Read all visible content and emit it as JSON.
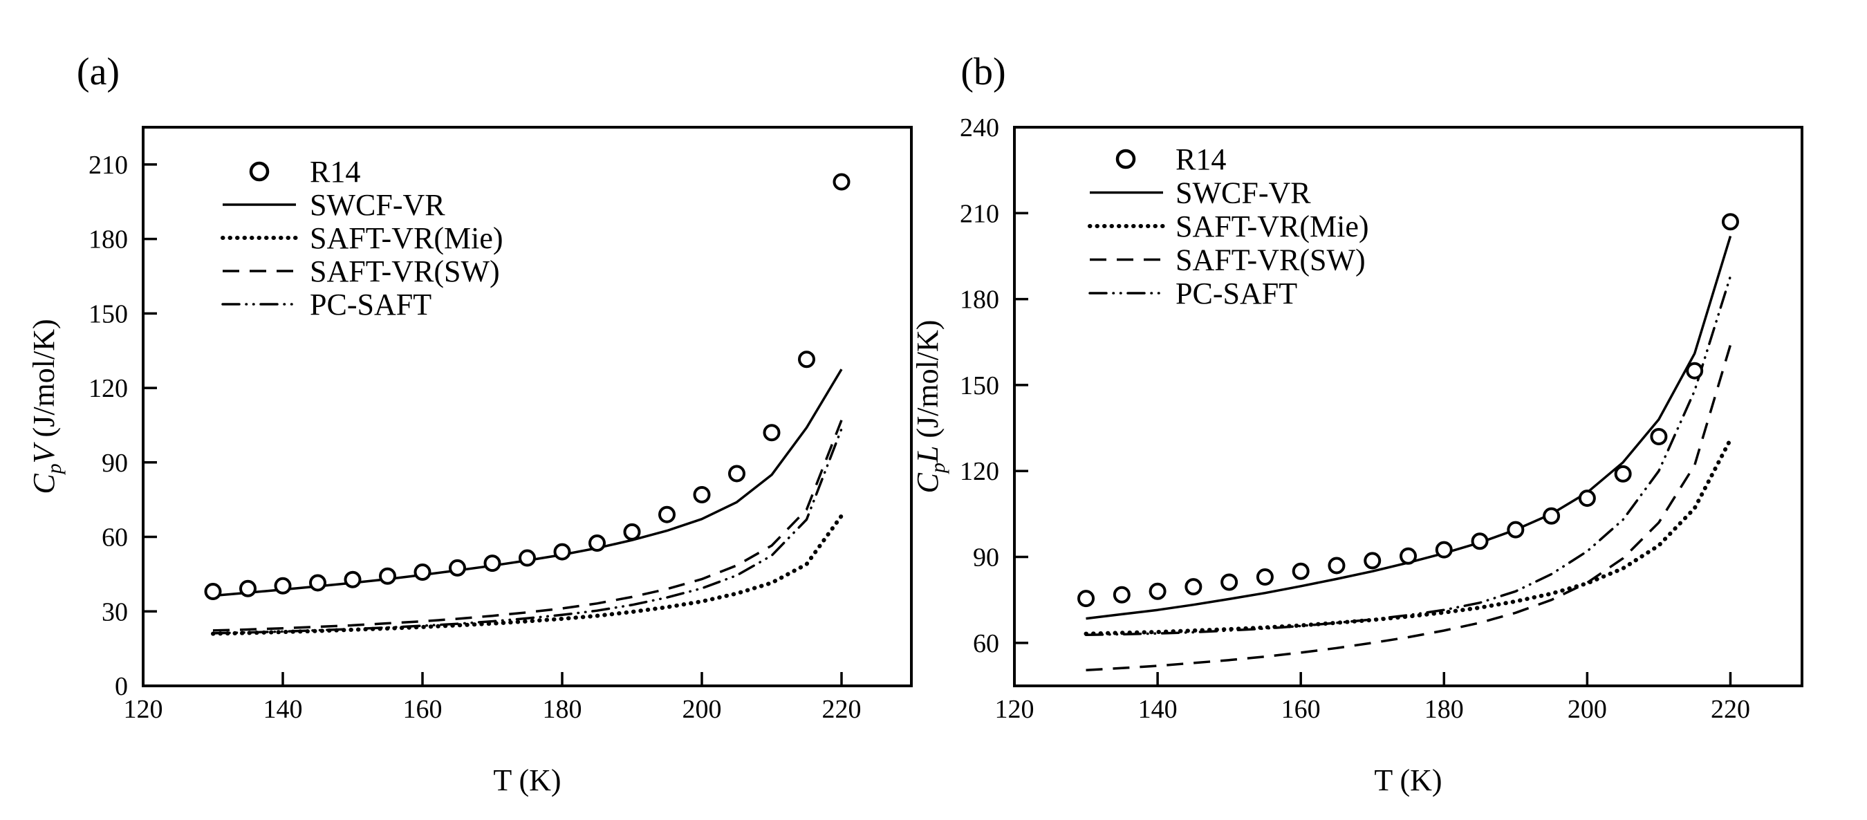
{
  "figure": {
    "background": "#ffffff",
    "ink": "#000000"
  },
  "chart_data": [
    {
      "id": "a",
      "type": "line",
      "panel_tag": "(a)",
      "xlabel": "T (K)",
      "ylabel": {
        "base": "C",
        "subscript": "p",
        "phase": "V",
        "unit": " (J/mol/K)"
      },
      "x_range": [
        120,
        230
      ],
      "y_range": [
        0,
        225
      ],
      "x_ticks": [
        120,
        140,
        160,
        180,
        200,
        220
      ],
      "y_ticks": [
        0,
        30,
        60,
        90,
        120,
        150,
        180,
        210
      ],
      "grid": false,
      "legend_position": "upper-left-inside",
      "legend": [
        {
          "label": "R14",
          "style": "circles"
        },
        {
          "label": "SWCF-VR",
          "style": "solid"
        },
        {
          "label": "SAFT-VR(Mie)",
          "style": "dotted"
        },
        {
          "label": "SAFT-VR(SW)",
          "style": "dashed"
        },
        {
          "label": "PC-SAFT",
          "style": "dashdotdot"
        }
      ],
      "series": [
        {
          "name": "SWCF-VR",
          "style": "solid",
          "points": [
            [
              130,
              36.3
            ],
            [
              135,
              37.5
            ],
            [
              140,
              38.8
            ],
            [
              145,
              40.1
            ],
            [
              150,
              41.5
            ],
            [
              155,
              43.0
            ],
            [
              160,
              44.7
            ],
            [
              165,
              46.5
            ],
            [
              170,
              48.4
            ],
            [
              175,
              50.5
            ],
            [
              180,
              52.8
            ],
            [
              185,
              55.5
            ],
            [
              190,
              58.7
            ],
            [
              195,
              62.5
            ],
            [
              200,
              67.2
            ],
            [
              205,
              74.0
            ],
            [
              210,
              85.0
            ],
            [
              215,
              104.0
            ],
            [
              220,
              127.5
            ]
          ]
        },
        {
          "name": "SAFT-VR(Mie)",
          "style": "dotted",
          "points": [
            [
              130,
              21.0
            ],
            [
              135,
              21.3
            ],
            [
              140,
              21.7
            ],
            [
              145,
              22.1
            ],
            [
              150,
              22.6
            ],
            [
              155,
              23.1
            ],
            [
              160,
              23.7
            ],
            [
              165,
              24.4
            ],
            [
              170,
              25.1
            ],
            [
              175,
              26.0
            ],
            [
              180,
              27.0
            ],
            [
              185,
              28.2
            ],
            [
              190,
              29.8
            ],
            [
              195,
              31.7
            ],
            [
              200,
              34.0
            ],
            [
              205,
              37.2
            ],
            [
              210,
              41.5
            ],
            [
              215,
              49.0
            ],
            [
              220,
              68.5
            ]
          ]
        },
        {
          "name": "SAFT-VR(SW)",
          "style": "dashed",
          "points": [
            [
              130,
              22.3
            ],
            [
              135,
              22.7
            ],
            [
              140,
              23.2
            ],
            [
              145,
              23.8
            ],
            [
              150,
              24.4
            ],
            [
              155,
              25.2
            ],
            [
              160,
              26.0
            ],
            [
              165,
              27.0
            ],
            [
              170,
              28.2
            ],
            [
              175,
              29.6
            ],
            [
              180,
              31.2
            ],
            [
              185,
              33.2
            ],
            [
              190,
              35.8
            ],
            [
              195,
              39.0
            ],
            [
              200,
              43.0
            ],
            [
              205,
              48.5
            ],
            [
              210,
              56.5
            ],
            [
              215,
              71.0
            ],
            [
              220,
              107.0
            ]
          ]
        },
        {
          "name": "PC-SAFT",
          "style": "dashdotdot",
          "points": [
            [
              130,
              21.2
            ],
            [
              135,
              21.5
            ],
            [
              140,
              21.9
            ],
            [
              145,
              22.4
            ],
            [
              150,
              22.9
            ],
            [
              155,
              23.5
            ],
            [
              160,
              24.2
            ],
            [
              165,
              25.0
            ],
            [
              170,
              26.0
            ],
            [
              175,
              27.2
            ],
            [
              180,
              28.6
            ],
            [
              185,
              30.3
            ],
            [
              190,
              32.6
            ],
            [
              195,
              35.6
            ],
            [
              200,
              39.3
            ],
            [
              205,
              44.5
            ],
            [
              210,
              52.5
            ],
            [
              215,
              67.0
            ],
            [
              220,
              103.5
            ]
          ]
        },
        {
          "name": "R14",
          "style": "circles",
          "points": [
            [
              130,
              38.0
            ],
            [
              135,
              39.2
            ],
            [
              140,
              40.3
            ],
            [
              145,
              41.5
            ],
            [
              150,
              42.8
            ],
            [
              155,
              44.2
            ],
            [
              160,
              45.8
            ],
            [
              165,
              47.5
            ],
            [
              170,
              49.4
            ],
            [
              175,
              51.5
            ],
            [
              180,
              54.0
            ],
            [
              185,
              57.5
            ],
            [
              190,
              62.0
            ],
            [
              195,
              69.0
            ],
            [
              200,
              77.0
            ],
            [
              205,
              85.5
            ],
            [
              210,
              102.0
            ],
            [
              215,
              131.5
            ],
            [
              220,
              203.0
            ]
          ]
        }
      ]
    },
    {
      "id": "b",
      "type": "line",
      "panel_tag": "(b)",
      "xlabel": "T (K)",
      "ylabel": {
        "base": "C",
        "subscript": "p",
        "phase": "L",
        "unit": " (J/mol/K)"
      },
      "x_range": [
        120,
        230
      ],
      "y_range": [
        45,
        240
      ],
      "x_ticks": [
        120,
        140,
        160,
        180,
        200,
        220
      ],
      "y_ticks": [
        60,
        90,
        120,
        150,
        180,
        210,
        240
      ],
      "grid": false,
      "legend_position": "upper-left-inside",
      "legend": [
        {
          "label": "R14",
          "style": "circles"
        },
        {
          "label": "SWCF-VR",
          "style": "solid"
        },
        {
          "label": "SAFT-VR(Mie)",
          "style": "dotted"
        },
        {
          "label": "SAFT-VR(SW)",
          "style": "dashed"
        },
        {
          "label": "PC-SAFT",
          "style": "dashdotdot"
        }
      ],
      "series": [
        {
          "name": "SWCF-VR",
          "style": "solid",
          "points": [
            [
              130,
              68.5
            ],
            [
              135,
              70.0
            ],
            [
              140,
              71.5
            ],
            [
              145,
              73.3
            ],
            [
              150,
              75.3
            ],
            [
              155,
              77.4
            ],
            [
              160,
              79.8
            ],
            [
              165,
              82.3
            ],
            [
              170,
              85.0
            ],
            [
              175,
              88.0
            ],
            [
              180,
              91.3
            ],
            [
              185,
              95.0
            ],
            [
              190,
              99.5
            ],
            [
              195,
              105.0
            ],
            [
              200,
              112.5
            ],
            [
              205,
              123.0
            ],
            [
              210,
              138.0
            ],
            [
              215,
              161.0
            ],
            [
              220,
              202.0
            ]
          ]
        },
        {
          "name": "SAFT-VR(Mie)",
          "style": "dotted",
          "points": [
            [
              130,
              63.2
            ],
            [
              135,
              63.5
            ],
            [
              140,
              63.8
            ],
            [
              145,
              64.3
            ],
            [
              150,
              64.8
            ],
            [
              155,
              65.4
            ],
            [
              160,
              66.1
            ],
            [
              165,
              67.0
            ],
            [
              170,
              68.0
            ],
            [
              175,
              69.2
            ],
            [
              180,
              70.6
            ],
            [
              185,
              72.3
            ],
            [
              190,
              74.5
            ],
            [
              195,
              77.2
            ],
            [
              200,
              80.8
            ],
            [
              205,
              86.0
            ],
            [
              210,
              94.0
            ],
            [
              215,
              107.0
            ],
            [
              220,
              131.0
            ]
          ]
        },
        {
          "name": "SAFT-VR(SW)",
          "style": "dashed",
          "points": [
            [
              130,
              50.5
            ],
            [
              135,
              51.2
            ],
            [
              140,
              52.0
            ],
            [
              145,
              53.0
            ],
            [
              150,
              54.0
            ],
            [
              155,
              55.2
            ],
            [
              160,
              56.6
            ],
            [
              165,
              58.2
            ],
            [
              170,
              60.0
            ],
            [
              175,
              62.0
            ],
            [
              180,
              64.3
            ],
            [
              185,
              67.0
            ],
            [
              190,
              70.5
            ],
            [
              195,
              75.0
            ],
            [
              200,
              81.0
            ],
            [
              205,
              89.5
            ],
            [
              210,
              102.0
            ],
            [
              215,
              122.0
            ],
            [
              220,
              164.0
            ]
          ]
        },
        {
          "name": "PC-SAFT",
          "style": "dashdotdot",
          "points": [
            [
              130,
              62.8
            ],
            [
              135,
              63.0
            ],
            [
              140,
              63.3
            ],
            [
              145,
              63.7
            ],
            [
              150,
              64.3
            ],
            [
              155,
              65.0
            ],
            [
              160,
              65.9
            ],
            [
              165,
              67.0
            ],
            [
              170,
              68.2
            ],
            [
              175,
              69.7
            ],
            [
              180,
              71.5
            ],
            [
              185,
              74.0
            ],
            [
              190,
              78.0
            ],
            [
              195,
              84.0
            ],
            [
              200,
              92.0
            ],
            [
              205,
              103.0
            ],
            [
              210,
              120.0
            ],
            [
              215,
              148.0
            ],
            [
              220,
              188.0
            ]
          ]
        },
        {
          "name": "R14",
          "style": "circles",
          "points": [
            [
              130,
              75.5
            ],
            [
              135,
              76.8
            ],
            [
              140,
              78.0
            ],
            [
              145,
              79.6
            ],
            [
              150,
              81.2
            ],
            [
              155,
              83.0
            ],
            [
              160,
              85.0
            ],
            [
              165,
              87.0
            ],
            [
              170,
              88.7
            ],
            [
              175,
              90.3
            ],
            [
              180,
              92.5
            ],
            [
              185,
              95.5
            ],
            [
              190,
              99.5
            ],
            [
              195,
              104.3
            ],
            [
              200,
              110.5
            ],
            [
              205,
              119.0
            ],
            [
              210,
              132.0
            ],
            [
              215,
              155.0
            ],
            [
              220,
              207.0
            ]
          ]
        }
      ]
    }
  ]
}
